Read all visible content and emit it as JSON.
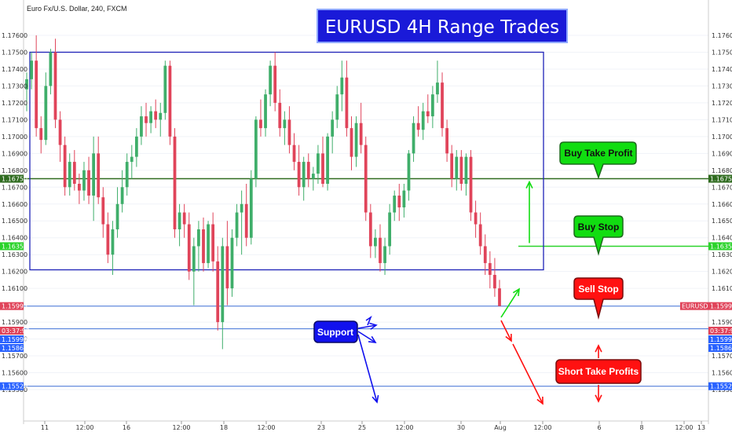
{
  "header": {
    "symbol_text": "Euro Fx/U.S. Dollar, 240, FXCM",
    "title_banner": "EURUSD 4H Range Trades"
  },
  "colors": {
    "up": "#3fae6a",
    "down": "#e0445a",
    "range_box": "#1e22b8",
    "support_line": "#3d6fd6",
    "buy_tp_line": "#2f6b1f",
    "buy_stop_line": "#2bd32b",
    "callout_green": "#11dd11",
    "callout_red": "#ff1111",
    "callout_blue": "#1111ee",
    "banner_bg": "#1a1ad8",
    "tag_blue": "#2962ff",
    "tag_red": "#e0445a",
    "tag_green": "#2f6b1f",
    "tag_lime": "#2bd32b"
  },
  "axes": {
    "y_ticks": [
      "1.17600",
      "1.17500",
      "1.17400",
      "1.17300",
      "1.17200",
      "1.17100",
      "1.17000",
      "1.16900",
      "1.16800",
      "1.16700",
      "1.16600",
      "1.16500",
      "1.16400",
      "1.16300",
      "1.16200",
      "1.16100",
      "1.15900",
      "1.15800",
      "1.15700",
      "1.15600",
      "1.15500"
    ],
    "x_ticks": [
      "11",
      "12:00",
      "16",
      "12:00",
      "18",
      "12:00",
      "23",
      "25",
      "12:00",
      "30",
      "Aug",
      "12:00",
      "6",
      "8",
      "12:00",
      "13"
    ]
  },
  "price_tags": {
    "left": [
      {
        "label": "1.16750",
        "kind": "green"
      },
      {
        "label": "1.16350",
        "kind": "lime"
      },
      {
        "label": "1.15995",
        "kind": "red"
      },
      {
        "label": "03:37:92",
        "kind": "red"
      },
      {
        "label": "1.15990",
        "kind": "blue"
      },
      {
        "label": "1.15860",
        "kind": "blue"
      },
      {
        "label": "1.15520",
        "kind": "blue"
      }
    ],
    "right": [
      {
        "label": "1.16750",
        "kind": "green"
      },
      {
        "label": "1.16350",
        "kind": "lime"
      },
      {
        "label": "EURUSD",
        "kind": "red"
      },
      {
        "label": "1.15995",
        "kind": "red"
      },
      {
        "label": "03:37:92",
        "kind": "red"
      },
      {
        "label": "1.15990",
        "kind": "blue"
      },
      {
        "label": "1.15860",
        "kind": "blue"
      },
      {
        "label": "1.15520",
        "kind": "blue"
      }
    ]
  },
  "callouts": {
    "buy_take_profit": "Buy Take Profit",
    "buy_stop": "Buy Stop",
    "sell_stop": "Sell Stop",
    "short_take_profits": "Short Take Profits",
    "support": "Support"
  },
  "chart_data": {
    "type": "candlestick",
    "title": "EURUSD 4H Range Trades",
    "xlabel": "",
    "ylabel": "",
    "ylim": [
      1.1545,
      1.1768
    ],
    "range_box": {
      "high": 1.175,
      "low": 1.1621
    },
    "levels": {
      "buy_take_profit": 1.1675,
      "buy_stop": 1.1635,
      "sell_stop": 1.15995,
      "support": 1.1599,
      "short_take_profit_1": 1.1586,
      "short_take_profit_2": 1.1552
    },
    "candles": [
      {
        "o": 1.1728,
        "h": 1.1738,
        "l": 1.1715,
        "c": 1.1734
      },
      {
        "o": 1.1734,
        "h": 1.175,
        "l": 1.1728,
        "c": 1.1745
      },
      {
        "o": 1.1745,
        "h": 1.176,
        "l": 1.17,
        "c": 1.1705
      },
      {
        "o": 1.1705,
        "h": 1.1712,
        "l": 1.169,
        "c": 1.1698
      },
      {
        "o": 1.1698,
        "h": 1.1738,
        "l": 1.1695,
        "c": 1.173
      },
      {
        "o": 1.173,
        "h": 1.1752,
        "l": 1.1725,
        "c": 1.175
      },
      {
        "o": 1.175,
        "h": 1.1758,
        "l": 1.1705,
        "c": 1.171
      },
      {
        "o": 1.171,
        "h": 1.1715,
        "l": 1.1685,
        "c": 1.1695
      },
      {
        "o": 1.1695,
        "h": 1.17,
        "l": 1.1665,
        "c": 1.167
      },
      {
        "o": 1.167,
        "h": 1.169,
        "l": 1.1665,
        "c": 1.1685
      },
      {
        "o": 1.1685,
        "h": 1.1692,
        "l": 1.1668,
        "c": 1.1672
      },
      {
        "o": 1.1672,
        "h": 1.1678,
        "l": 1.166,
        "c": 1.1668
      },
      {
        "o": 1.1668,
        "h": 1.1685,
        "l": 1.1662,
        "c": 1.168
      },
      {
        "o": 1.168,
        "h": 1.1688,
        "l": 1.166,
        "c": 1.1665
      },
      {
        "o": 1.1665,
        "h": 1.17,
        "l": 1.165,
        "c": 1.169
      },
      {
        "o": 1.169,
        "h": 1.17,
        "l": 1.166,
        "c": 1.1664
      },
      {
        "o": 1.1664,
        "h": 1.167,
        "l": 1.164,
        "c": 1.1648
      },
      {
        "o": 1.1648,
        "h": 1.1655,
        "l": 1.1625,
        "c": 1.163
      },
      {
        "o": 1.163,
        "h": 1.165,
        "l": 1.1618,
        "c": 1.1645
      },
      {
        "o": 1.1645,
        "h": 1.167,
        "l": 1.164,
        "c": 1.166
      },
      {
        "o": 1.166,
        "h": 1.168,
        "l": 1.1655,
        "c": 1.167
      },
      {
        "o": 1.167,
        "h": 1.169,
        "l": 1.1665,
        "c": 1.1685
      },
      {
        "o": 1.1685,
        "h": 1.1695,
        "l": 1.1675,
        "c": 1.1688
      },
      {
        "o": 1.1688,
        "h": 1.1705,
        "l": 1.1682,
        "c": 1.17
      },
      {
        "o": 1.17,
        "h": 1.1718,
        "l": 1.1695,
        "c": 1.1712
      },
      {
        "o": 1.1712,
        "h": 1.172,
        "l": 1.17,
        "c": 1.1708
      },
      {
        "o": 1.1708,
        "h": 1.1718,
        "l": 1.1702,
        "c": 1.1715
      },
      {
        "o": 1.1715,
        "h": 1.1722,
        "l": 1.1705,
        "c": 1.171
      },
      {
        "o": 1.171,
        "h": 1.172,
        "l": 1.17,
        "c": 1.1714
      },
      {
        "o": 1.1714,
        "h": 1.1745,
        "l": 1.171,
        "c": 1.1742
      },
      {
        "o": 1.1742,
        "h": 1.1745,
        "l": 1.1695,
        "c": 1.17
      },
      {
        "o": 1.17,
        "h": 1.1705,
        "l": 1.164,
        "c": 1.1645
      },
      {
        "o": 1.1645,
        "h": 1.166,
        "l": 1.1635,
        "c": 1.1655
      },
      {
        "o": 1.1655,
        "h": 1.166,
        "l": 1.164,
        "c": 1.1648
      },
      {
        "o": 1.1648,
        "h": 1.1655,
        "l": 1.1615,
        "c": 1.162
      },
      {
        "o": 1.162,
        "h": 1.164,
        "l": 1.16,
        "c": 1.1635
      },
      {
        "o": 1.1635,
        "h": 1.165,
        "l": 1.162,
        "c": 1.1645
      },
      {
        "o": 1.1645,
        "h": 1.1652,
        "l": 1.162,
        "c": 1.1625
      },
      {
        "o": 1.1625,
        "h": 1.165,
        "l": 1.1622,
        "c": 1.1648
      },
      {
        "o": 1.1648,
        "h": 1.1655,
        "l": 1.162,
        "c": 1.1626
      },
      {
        "o": 1.1626,
        "h": 1.1635,
        "l": 1.1585,
        "c": 1.159
      },
      {
        "o": 1.159,
        "h": 1.164,
        "l": 1.1574,
        "c": 1.1635
      },
      {
        "o": 1.1635,
        "h": 1.165,
        "l": 1.16,
        "c": 1.161
      },
      {
        "o": 1.161,
        "h": 1.1645,
        "l": 1.1605,
        "c": 1.164
      },
      {
        "o": 1.164,
        "h": 1.166,
        "l": 1.1635,
        "c": 1.1655
      },
      {
        "o": 1.1655,
        "h": 1.1668,
        "l": 1.163,
        "c": 1.166
      },
      {
        "o": 1.166,
        "h": 1.1672,
        "l": 1.1635,
        "c": 1.164
      },
      {
        "o": 1.164,
        "h": 1.168,
        "l": 1.1636,
        "c": 1.1675
      },
      {
        "o": 1.1675,
        "h": 1.1712,
        "l": 1.167,
        "c": 1.171
      },
      {
        "o": 1.171,
        "h": 1.1722,
        "l": 1.17,
        "c": 1.1705
      },
      {
        "o": 1.1705,
        "h": 1.1728,
        "l": 1.17,
        "c": 1.1725
      },
      {
        "o": 1.1725,
        "h": 1.1745,
        "l": 1.1718,
        "c": 1.1742
      },
      {
        "o": 1.1742,
        "h": 1.175,
        "l": 1.1715,
        "c": 1.172
      },
      {
        "o": 1.172,
        "h": 1.1728,
        "l": 1.17,
        "c": 1.1705
      },
      {
        "o": 1.1705,
        "h": 1.1715,
        "l": 1.1695,
        "c": 1.171
      },
      {
        "o": 1.171,
        "h": 1.1718,
        "l": 1.169,
        "c": 1.1695
      },
      {
        "o": 1.1695,
        "h": 1.1702,
        "l": 1.168,
        "c": 1.1685
      },
      {
        "o": 1.1685,
        "h": 1.1695,
        "l": 1.1665,
        "c": 1.167
      },
      {
        "o": 1.167,
        "h": 1.1688,
        "l": 1.1662,
        "c": 1.1685
      },
      {
        "o": 1.1685,
        "h": 1.169,
        "l": 1.167,
        "c": 1.1675
      },
      {
        "o": 1.1675,
        "h": 1.1682,
        "l": 1.1668,
        "c": 1.1678
      },
      {
        "o": 1.1678,
        "h": 1.1695,
        "l": 1.1672,
        "c": 1.169
      },
      {
        "o": 1.169,
        "h": 1.17,
        "l": 1.167,
        "c": 1.1672
      },
      {
        "o": 1.1672,
        "h": 1.1702,
        "l": 1.1668,
        "c": 1.17
      },
      {
        "o": 1.17,
        "h": 1.1715,
        "l": 1.169,
        "c": 1.171
      },
      {
        "o": 1.171,
        "h": 1.173,
        "l": 1.1705,
        "c": 1.1725
      },
      {
        "o": 1.1725,
        "h": 1.1745,
        "l": 1.1715,
        "c": 1.1735
      },
      {
        "o": 1.1735,
        "h": 1.1745,
        "l": 1.17,
        "c": 1.1705
      },
      {
        "o": 1.1705,
        "h": 1.1712,
        "l": 1.168,
        "c": 1.1688
      },
      {
        "o": 1.1688,
        "h": 1.1712,
        "l": 1.1682,
        "c": 1.1708
      },
      {
        "o": 1.1708,
        "h": 1.172,
        "l": 1.169,
        "c": 1.1695
      },
      {
        "o": 1.1695,
        "h": 1.17,
        "l": 1.165,
        "c": 1.1655
      },
      {
        "o": 1.1655,
        "h": 1.166,
        "l": 1.1628,
        "c": 1.1635
      },
      {
        "o": 1.1635,
        "h": 1.1645,
        "l": 1.1628,
        "c": 1.164
      },
      {
        "o": 1.164,
        "h": 1.1648,
        "l": 1.162,
        "c": 1.1625
      },
      {
        "o": 1.1625,
        "h": 1.164,
        "l": 1.1618,
        "c": 1.1635
      },
      {
        "o": 1.1635,
        "h": 1.166,
        "l": 1.163,
        "c": 1.1655
      },
      {
        "o": 1.1655,
        "h": 1.1668,
        "l": 1.165,
        "c": 1.1665
      },
      {
        "o": 1.1665,
        "h": 1.1672,
        "l": 1.165,
        "c": 1.1658
      },
      {
        "o": 1.1658,
        "h": 1.1672,
        "l": 1.1652,
        "c": 1.1668
      },
      {
        "o": 1.1668,
        "h": 1.1692,
        "l": 1.1662,
        "c": 1.169
      },
      {
        "o": 1.169,
        "h": 1.1712,
        "l": 1.1685,
        "c": 1.1708
      },
      {
        "o": 1.1708,
        "h": 1.1718,
        "l": 1.17,
        "c": 1.1704
      },
      {
        "o": 1.1704,
        "h": 1.172,
        "l": 1.1698,
        "c": 1.1715
      },
      {
        "o": 1.1715,
        "h": 1.1725,
        "l": 1.1708,
        "c": 1.1712
      },
      {
        "o": 1.1712,
        "h": 1.173,
        "l": 1.1705,
        "c": 1.1725
      },
      {
        "o": 1.1725,
        "h": 1.1745,
        "l": 1.172,
        "c": 1.1732
      },
      {
        "o": 1.1732,
        "h": 1.1738,
        "l": 1.17,
        "c": 1.1705
      },
      {
        "o": 1.1705,
        "h": 1.171,
        "l": 1.1685,
        "c": 1.169
      },
      {
        "o": 1.169,
        "h": 1.1695,
        "l": 1.167,
        "c": 1.1675
      },
      {
        "o": 1.1675,
        "h": 1.1692,
        "l": 1.1668,
        "c": 1.1688
      },
      {
        "o": 1.1688,
        "h": 1.1692,
        "l": 1.1668,
        "c": 1.1672
      },
      {
        "o": 1.1672,
        "h": 1.169,
        "l": 1.1665,
        "c": 1.1688
      },
      {
        "o": 1.1688,
        "h": 1.1692,
        "l": 1.165,
        "c": 1.1655
      },
      {
        "o": 1.1655,
        "h": 1.1662,
        "l": 1.164,
        "c": 1.1648
      },
      {
        "o": 1.1648,
        "h": 1.1655,
        "l": 1.163,
        "c": 1.1635
      },
      {
        "o": 1.1635,
        "h": 1.1642,
        "l": 1.1618,
        "c": 1.1625
      },
      {
        "o": 1.1625,
        "h": 1.1632,
        "l": 1.161,
        "c": 1.1618
      },
      {
        "o": 1.1618,
        "h": 1.1628,
        "l": 1.1605,
        "c": 1.161
      },
      {
        "o": 1.161,
        "h": 1.1615,
        "l": 1.15995,
        "c": 1.15995
      }
    ]
  }
}
